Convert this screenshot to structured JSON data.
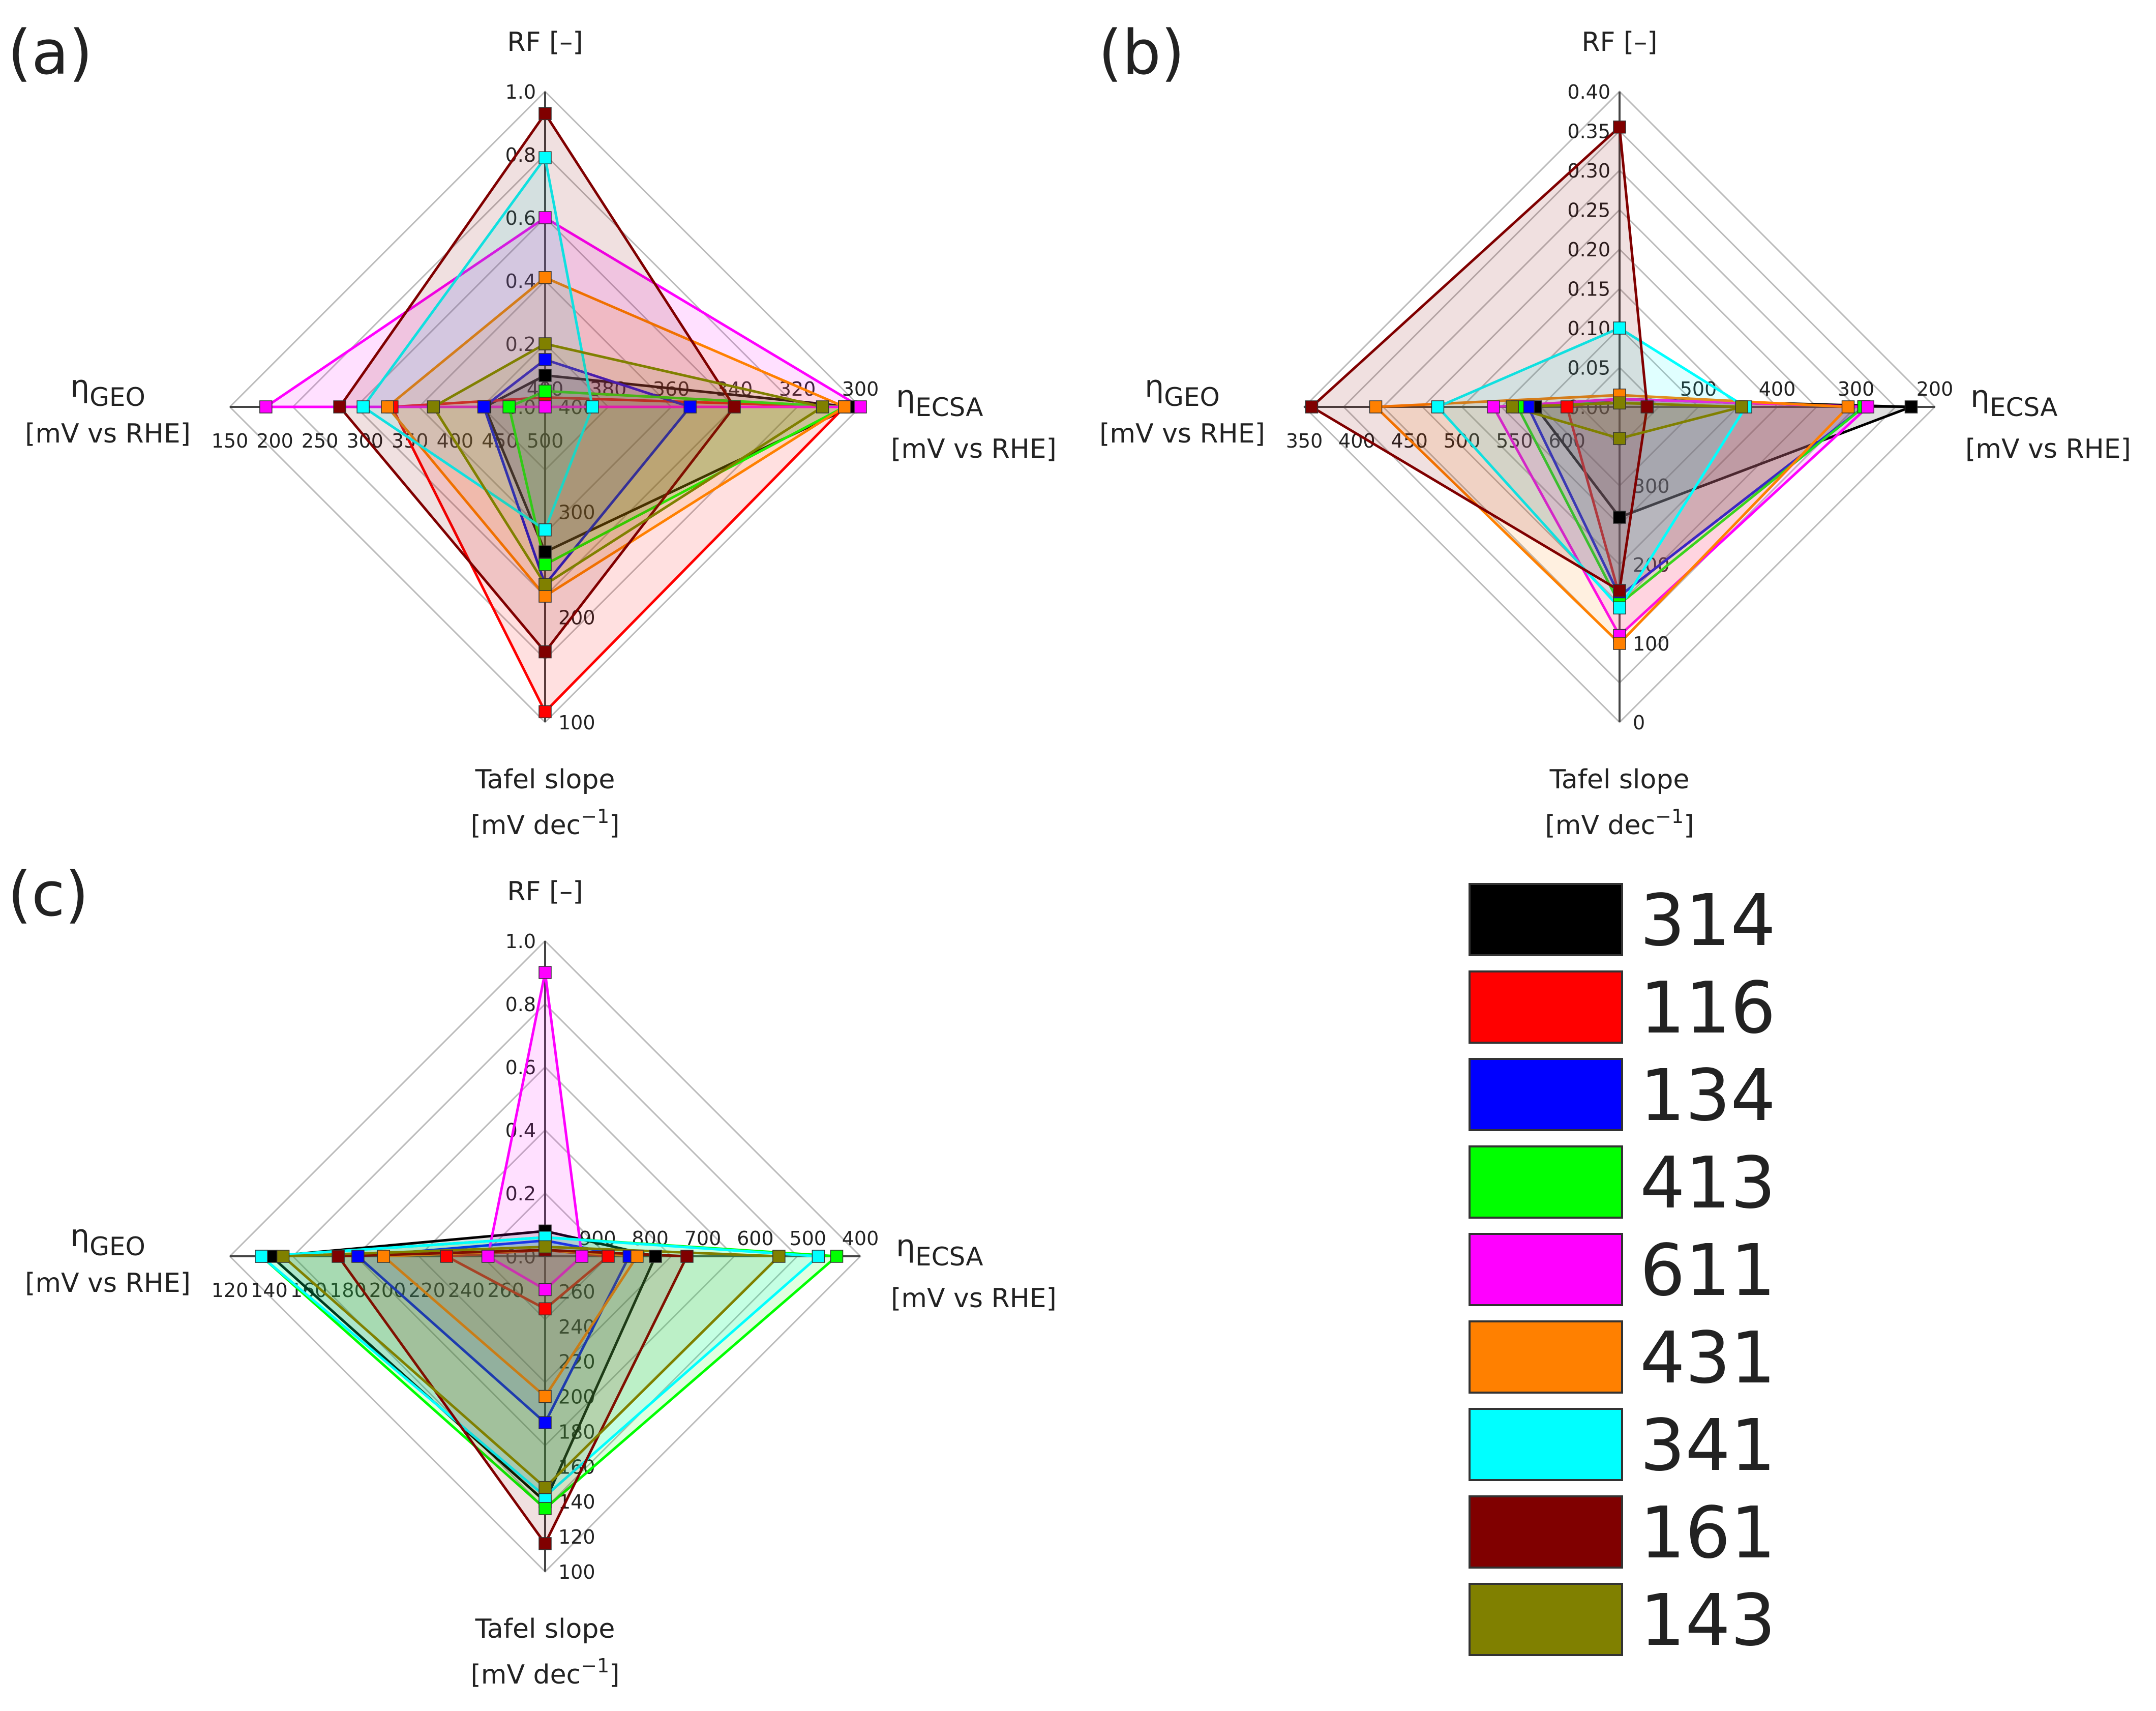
{
  "legend": {
    "entries": [
      {
        "label": "314",
        "color": "#000000"
      },
      {
        "label": "116",
        "color": "#ff0000"
      },
      {
        "label": "134",
        "color": "#0000ff"
      },
      {
        "label": "413",
        "color": "#00ff00"
      },
      {
        "label": "611",
        "color": "#ff00ff"
      },
      {
        "label": "431",
        "color": "#ff8000"
      },
      {
        "label": "341",
        "color": "#00ffff"
      },
      {
        "label": "161",
        "color": "#800000"
      },
      {
        "label": "143",
        "color": "#808000"
      }
    ]
  },
  "chart_data": [
    {
      "panel": "(a)",
      "type": "radar",
      "axes": {
        "RF": {
          "label": "RF [–]",
          "min": 0,
          "max": 1.0,
          "ticks": [
            0.0,
            0.2,
            0.4,
            0.6,
            0.8,
            1.0
          ],
          "tick_labels": [
            "0.0",
            "0.2",
            "0.4",
            "0.6",
            "0.8",
            "1.0"
          ]
        },
        "ECSA": {
          "label_main": "η",
          "label_sub": "ECSA",
          "unit": "[mV vs RHE]",
          "inner": 400,
          "outer": 300,
          "ticks": [
            400,
            380,
            360,
            340,
            320,
            300
          ],
          "tick_labels": [
            "400",
            "380",
            "360",
            "340",
            "320",
            "300"
          ]
        },
        "Tafel": {
          "label": "Tafel slope",
          "unit_pre": "[mV dec",
          "unit_sup": "−1",
          "unit_post": "]",
          "inner": 400,
          "outer": 100,
          "ticks": [
            400,
            300,
            200,
            100
          ],
          "tick_labels": [
            "400",
            "300",
            "200",
            "100"
          ]
        },
        "GEO": {
          "label_main": "η",
          "label_sub": "GEO",
          "unit": "[mV vs RHE]",
          "inner": 500,
          "outer": 150,
          "ticks": [
            500,
            450,
            400,
            350,
            300,
            250,
            200,
            150
          ],
          "tick_labels": [
            "500",
            "450",
            "400",
            "350",
            "300",
            "250",
            "200",
            "150"
          ]
        }
      },
      "series": [
        {
          "name": "314",
          "RF": 0.1,
          "ECSA": 303,
          "Tafel": 262,
          "GEO": 433
        },
        {
          "name": "116",
          "RF": 0.03,
          "ECSA": 305,
          "Tafel": 110,
          "GEO": 330
        },
        {
          "name": "134",
          "RF": 0.15,
          "ECSA": 354,
          "Tafel": 231,
          "GEO": 432
        },
        {
          "name": "413",
          "RF": 0.05,
          "ECSA": 305,
          "Tafel": 250,
          "GEO": 460
        },
        {
          "name": "611",
          "RF": 0.6,
          "ECSA": 300,
          "Tafel": 400,
          "GEO": 190
        },
        {
          "name": "431",
          "RF": 0.41,
          "ECSA": 305,
          "Tafel": 220,
          "GEO": 325
        },
        {
          "name": "341",
          "RF": 0.79,
          "ECSA": 385,
          "Tafel": 283,
          "GEO": 298
        },
        {
          "name": "161",
          "RF": 0.93,
          "ECSA": 340,
          "Tafel": 167,
          "GEO": 272
        },
        {
          "name": "143",
          "RF": 0.2,
          "ECSA": 312,
          "Tafel": 231,
          "GEO": 376
        }
      ]
    },
    {
      "panel": "(b)",
      "type": "radar",
      "axes": {
        "RF": {
          "label": "RF [–]",
          "min": 0,
          "max": 0.4,
          "ticks": [
            0.0,
            0.05,
            0.1,
            0.15,
            0.2,
            0.25,
            0.3,
            0.35,
            0.4
          ],
          "tick_labels": [
            "0.00",
            "0.05",
            "0.10",
            "0.15",
            "0.20",
            "0.25",
            "0.30",
            "0.35",
            "0.40"
          ]
        },
        "ECSA": {
          "label_main": "η",
          "label_sub": "ECSA",
          "unit": "[mV vs RHE]",
          "inner": 600,
          "outer": 200,
          "ticks": [
            500,
            400,
            300,
            200
          ],
          "tick_labels": [
            "500",
            "400",
            "300",
            "200"
          ]
        },
        "Tafel": {
          "label": "Tafel slope",
          "unit_pre": "[mV dec",
          "unit_sup": "−1",
          "unit_post": "]",
          "inner": 400,
          "outer": 0,
          "ticks": [
            300,
            200,
            100,
            0
          ],
          "tick_labels": [
            "300",
            "200",
            "100",
            "0"
          ]
        },
        "GEO": {
          "label_main": "η",
          "label_sub": "GEO",
          "unit": "[mV vs RHE]",
          "inner": 650,
          "outer": 350,
          "ticks": [
            600,
            550,
            500,
            450,
            400,
            350
          ],
          "tick_labels": [
            "600",
            "550",
            "500",
            "450",
            "400",
            "350"
          ]
        }
      },
      "series": [
        {
          "name": "314",
          "RF": 0.01,
          "ECSA": 230,
          "Tafel": 260,
          "GEO": 570
        },
        {
          "name": "116",
          "RF": 0.01,
          "ECSA": 290,
          "Tafel": 160,
          "GEO": 600
        },
        {
          "name": "134",
          "RF": 0.01,
          "ECSA": 290,
          "Tafel": 160,
          "GEO": 563
        },
        {
          "name": "413",
          "RF": 0.01,
          "ECSA": 290,
          "Tafel": 150,
          "GEO": 553
        },
        {
          "name": "611",
          "RF": 0.01,
          "ECSA": 285,
          "Tafel": 110,
          "GEO": 530
        },
        {
          "name": "431",
          "RF": 0.015,
          "ECSA": 310,
          "Tafel": 100,
          "GEO": 418
        },
        {
          "name": "341",
          "RF": 0.1,
          "ECSA": 440,
          "Tafel": 145,
          "GEO": 477
        },
        {
          "name": "161",
          "RF": 0.355,
          "ECSA": 565,
          "Tafel": 167,
          "GEO": 357
        },
        {
          "name": "143",
          "RF": 0.005,
          "ECSA": 445,
          "Tafel": 360,
          "GEO": 548
        }
      ]
    },
    {
      "panel": "(c)",
      "type": "radar",
      "axes": {
        "RF": {
          "label": "RF [–]",
          "min": 0,
          "max": 1.0,
          "ticks": [
            0.0,
            0.2,
            0.4,
            0.6,
            0.8,
            1.0
          ],
          "tick_labels": [
            "0.0",
            "0.2",
            "0.4",
            "0.6",
            "0.8",
            "1.0"
          ]
        },
        "ECSA": {
          "label_main": "η",
          "label_sub": "ECSA",
          "unit": "[mV vs RHE]",
          "inner": 1000,
          "outer": 400,
          "ticks": [
            900,
            800,
            700,
            600,
            500,
            400
          ],
          "tick_labels": [
            "900",
            "800",
            "700",
            "600",
            "500",
            "400"
          ]
        },
        "Tafel": {
          "label": "Tafel slope",
          "unit_pre": "[mV dec",
          "unit_sup": "−1",
          "unit_post": "]",
          "inner": 280,
          "outer": 100,
          "ticks": [
            260,
            240,
            220,
            200,
            180,
            160,
            140,
            120,
            100
          ],
          "tick_labels": [
            "260",
            "240",
            "220",
            "200",
            "180",
            "160",
            "140",
            "120",
            "100"
          ]
        },
        "GEO": {
          "label_main": "η",
          "label_sub": "GEO",
          "unit": "[mV vs RHE]",
          "inner": 280,
          "outer": 120,
          "ticks": [
            260,
            240,
            220,
            200,
            180,
            160,
            140,
            120
          ],
          "tick_labels": [
            "260",
            "240",
            "220",
            "200",
            "180",
            "160",
            "140",
            "120"
          ]
        }
      },
      "series": [
        {
          "name": "314",
          "RF": 0.08,
          "ECSA": 790,
          "Tafel": 140,
          "GEO": 141
        },
        {
          "name": "116",
          "RF": 0.02,
          "ECSA": 880,
          "Tafel": 250,
          "GEO": 230
        },
        {
          "name": "134",
          "RF": 0.05,
          "ECSA": 840,
          "Tafel": 185,
          "GEO": 185
        },
        {
          "name": "413",
          "RF": 0.06,
          "ECSA": 445,
          "Tafel": 136,
          "GEO": 136
        },
        {
          "name": "611",
          "RF": 0.9,
          "ECSA": 930,
          "Tafel": 261,
          "GEO": 251
        },
        {
          "name": "431",
          "RF": 0.02,
          "ECSA": 825,
          "Tafel": 200,
          "GEO": 198
        },
        {
          "name": "341",
          "RF": 0.06,
          "ECSA": 480,
          "Tafel": 143,
          "GEO": 136
        },
        {
          "name": "161",
          "RF": 0.02,
          "ECSA": 730,
          "Tafel": 116,
          "GEO": 175
        },
        {
          "name": "143",
          "RF": 0.03,
          "ECSA": 555,
          "Tafel": 148,
          "GEO": 147
        }
      ]
    }
  ]
}
